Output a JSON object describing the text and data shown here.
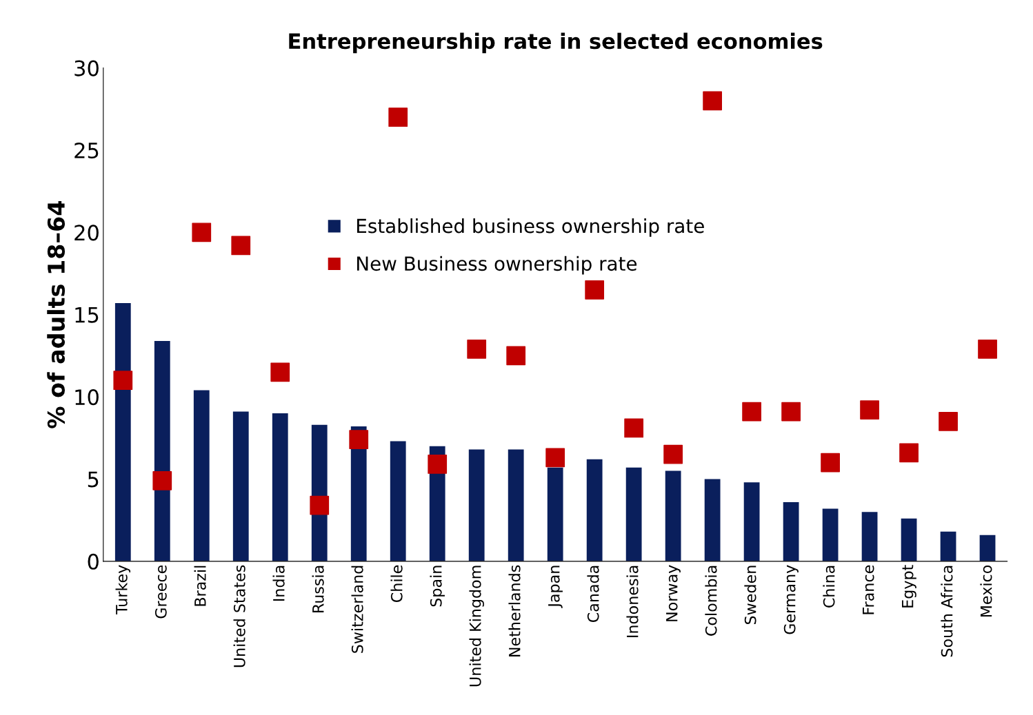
{
  "chart_data": {
    "type": "bar",
    "title": "Entrepreneurship rate in selected economies",
    "ylabel": "% of adults 18–64",
    "categories": [
      "Turkey",
      "Greece",
      "Brazil",
      "United States",
      "India",
      "Russia",
      "Switzerland",
      "Chile",
      "Spain",
      "United Kingdom",
      "Netherlands",
      "Japan",
      "Canada",
      "Indonesia",
      "Norway",
      "Colombia",
      "Sweden",
      "Germany",
      "China",
      "France",
      "Egypt",
      "South Africa",
      "Mexico"
    ],
    "series": [
      {
        "name": "Established business ownership rate",
        "color": "#0a1f5c",
        "values": [
          15.7,
          13.4,
          10.4,
          9.1,
          9.0,
          8.3,
          8.2,
          7.3,
          7.0,
          6.8,
          6.8,
          5.7,
          6.2,
          5.7,
          5.5,
          5.0,
          4.8,
          3.6,
          3.2,
          3.0,
          2.6,
          1.8,
          1.6
        ]
      },
      {
        "name": "New Business ownership rate",
        "type": "scatter",
        "marker": "square",
        "color": "#c00000",
        "values": [
          11.0,
          4.9,
          20.0,
          19.2,
          11.5,
          3.4,
          7.4,
          27.0,
          5.9,
          12.9,
          12.5,
          6.3,
          16.5,
          8.1,
          6.5,
          28.0,
          9.1,
          9.1,
          6.0,
          9.2,
          6.6,
          8.5,
          12.9
        ]
      }
    ],
    "ylim": [
      0,
      30
    ],
    "yticks": [
      0,
      5,
      10,
      15,
      20,
      25,
      30
    ],
    "grid": false,
    "legend": "top"
  }
}
